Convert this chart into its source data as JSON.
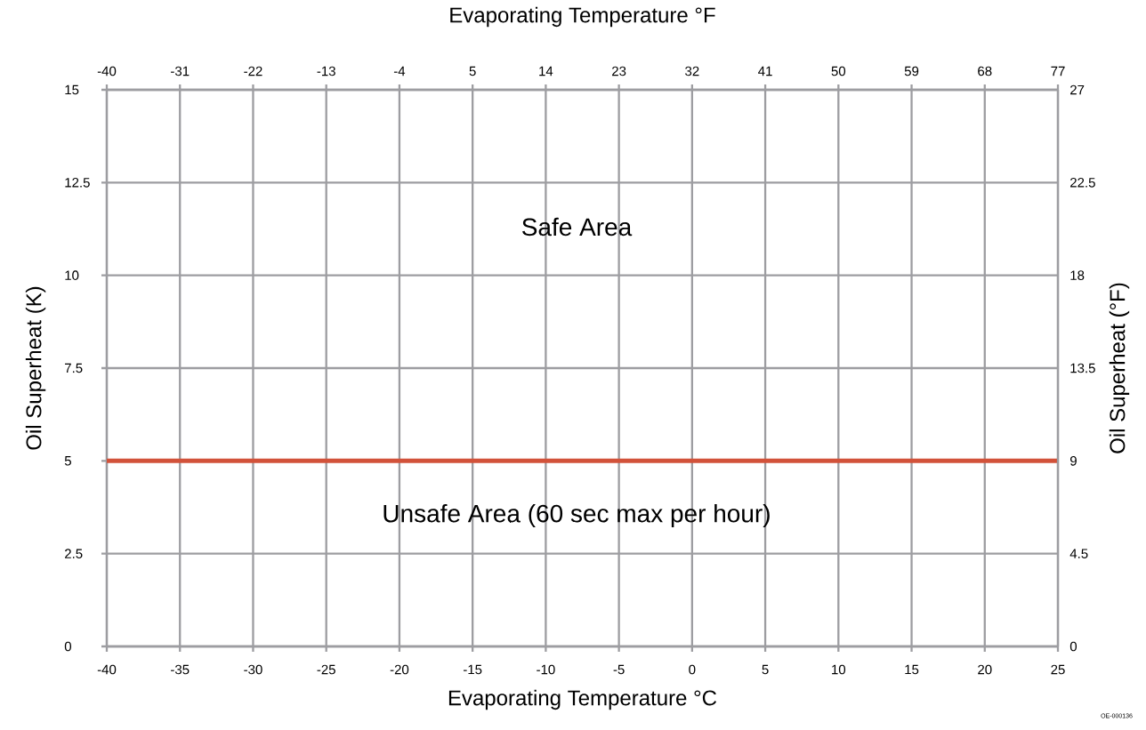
{
  "chart_data": {
    "type": "line",
    "xlabel": "Evaporating Temperature °C",
    "ylabel": "Oil Superheat (K)",
    "x2label": "Evaporating Temperature °F",
    "y2label": "Oil Superheat (°F)",
    "xlim": [
      -40,
      25
    ],
    "xticks": [
      -40,
      -35,
      -30,
      -25,
      -20,
      -15,
      -10,
      -5,
      0,
      5,
      10,
      15,
      20,
      25
    ],
    "x2lim": [
      -40,
      77
    ],
    "x2ticks": [
      -40,
      -31,
      -22,
      -13,
      -4,
      5,
      14,
      23,
      32,
      41,
      50,
      59,
      68,
      77
    ],
    "ylim": [
      0,
      15
    ],
    "yticks": [
      0,
      2.5,
      5,
      7.5,
      10,
      12.5,
      15
    ],
    "y2lim": [
      0,
      27
    ],
    "y2ticks": [
      0,
      4.5,
      9,
      13.5,
      18,
      22.5,
      27
    ],
    "grid": true,
    "ref_lines": [
      {
        "axis": "y",
        "value": 5,
        "color": "#d2523a"
      }
    ],
    "annotations": [
      "Safe Area",
      "Unsafe Area (60 sec max per hour)",
      "OE-000136"
    ]
  }
}
